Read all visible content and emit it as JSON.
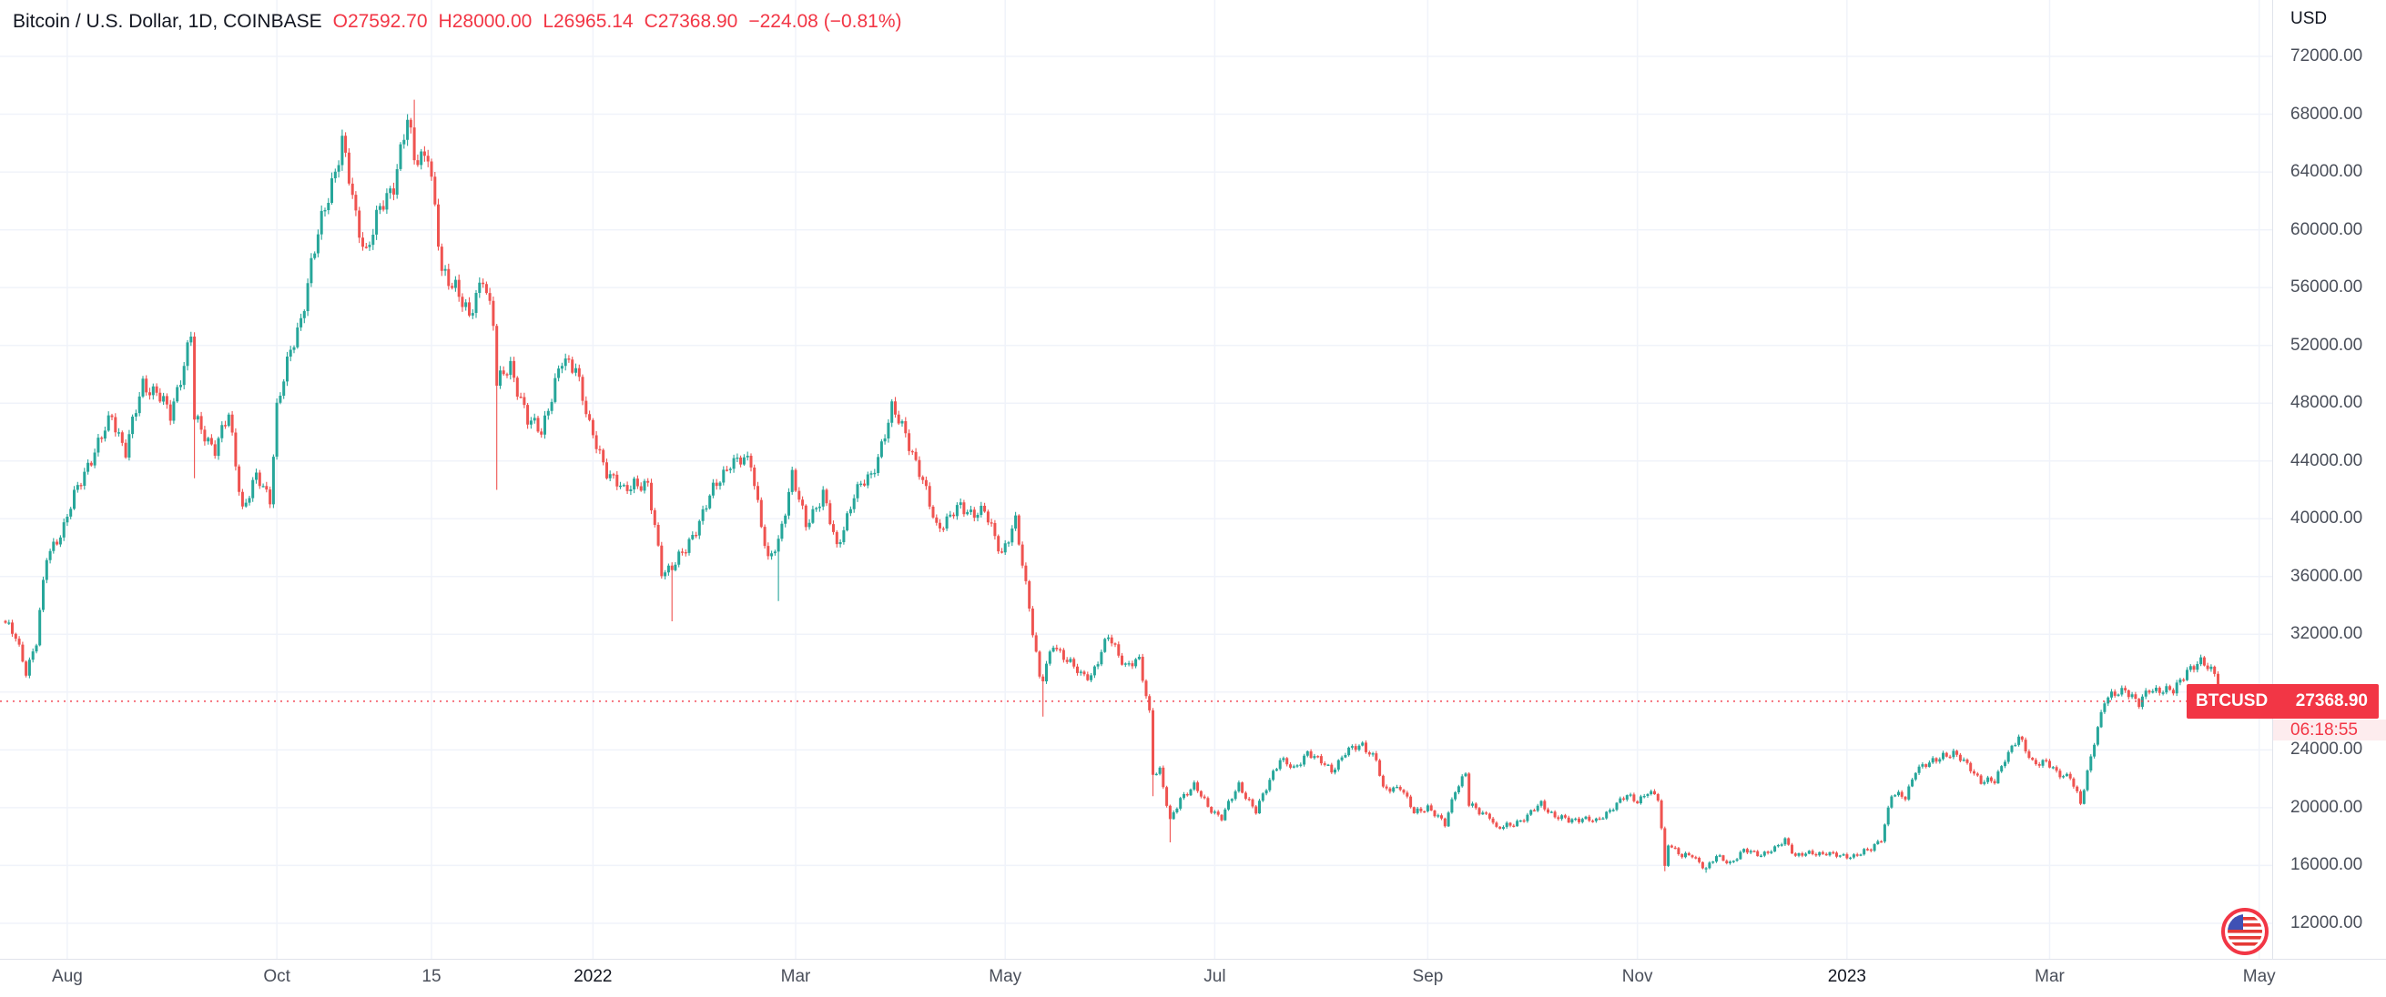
{
  "legend": {
    "symbol_text": "Bitcoin / U.S. Dollar, 1D, COINBASE",
    "ohlc": [
      {
        "label": "O",
        "value": "27592.70"
      },
      {
        "label": "H",
        "value": "28000.00"
      },
      {
        "label": "L",
        "value": "26965.14"
      },
      {
        "label": "C",
        "value": "27368.90"
      }
    ],
    "change_text": "−224.08 (−0.81%)"
  },
  "price_axis": {
    "currency_label": "USD",
    "badge": {
      "symbol": "BTCUSD",
      "price": "27368.90",
      "countdown": "06:18:55"
    }
  },
  "chart_data": {
    "type": "candlestick",
    "title": "Bitcoin / U.S. Dollar",
    "symbol": "BTCUSD",
    "interval": "1D",
    "exchange": "COINBASE",
    "currency": "USD",
    "current_bar": {
      "open": 27592.7,
      "high": 28000.0,
      "low": 26965.14,
      "close": 27368.9,
      "change": -224.08,
      "change_pct": -0.81
    },
    "price_line": 27368.9,
    "countdown": "06:18:55",
    "colors": {
      "up": "#26a69a",
      "down": "#ef5350",
      "accent": "#f23645"
    },
    "grid": true,
    "y_axis": {
      "side": "right",
      "ticks": [
        72000,
        68000,
        64000,
        60000,
        56000,
        52000,
        48000,
        44000,
        40000,
        36000,
        32000,
        28000,
        24000,
        20000,
        16000,
        12000
      ]
    },
    "x_axis": {
      "ticks": [
        {
          "label": "Aug",
          "day": 18
        },
        {
          "label": "Oct",
          "day": 79
        },
        {
          "label": "15",
          "day": 124
        },
        {
          "label": "2022",
          "day": 171,
          "major": true
        },
        {
          "label": "Mar",
          "day": 230
        },
        {
          "label": "May",
          "day": 291
        },
        {
          "label": "Jul",
          "day": 352
        },
        {
          "label": "Sep",
          "day": 414
        },
        {
          "label": "Nov",
          "day": 475
        },
        {
          "label": "2023",
          "day": 536,
          "major": true
        },
        {
          "label": "Mar",
          "day": 595
        },
        {
          "label": "May",
          "day": 656
        }
      ]
    },
    "series": {
      "sampling": "daily candles interpolated between anchor closes read off the chart; day 0 = left edge of plot",
      "anchors": [
        [
          0,
          32800
        ],
        [
          3,
          31700
        ],
        [
          6,
          29500
        ],
        [
          9,
          31500
        ],
        [
          12,
          37300
        ],
        [
          17,
          39500
        ],
        [
          20,
          41500
        ],
        [
          24,
          43800
        ],
        [
          28,
          45600
        ],
        [
          31,
          47100
        ],
        [
          35,
          44700
        ],
        [
          40,
          49300
        ],
        [
          44,
          48800
        ],
        [
          48,
          47100
        ],
        [
          54,
          52700
        ],
        [
          55,
          46900
        ],
        [
          57,
          46100
        ],
        [
          61,
          44900
        ],
        [
          65,
          47100
        ],
        [
          69,
          40700
        ],
        [
          73,
          42800
        ],
        [
          77,
          41500
        ],
        [
          79,
          47700
        ],
        [
          83,
          51500
        ],
        [
          86,
          53900
        ],
        [
          89,
          57500
        ],
        [
          93,
          61600
        ],
        [
          98,
          66000
        ],
        [
          102,
          60900
        ],
        [
          105,
          58500
        ],
        [
          109,
          61300
        ],
        [
          113,
          63300
        ],
        [
          117,
          67500
        ],
        [
          119,
          64900
        ],
        [
          123,
          65500
        ],
        [
          127,
          56900
        ],
        [
          131,
          56300
        ],
        [
          135,
          53700
        ],
        [
          139,
          57000
        ],
        [
          142,
          53600
        ],
        [
          143,
          49200
        ],
        [
          147,
          50700
        ],
        [
          152,
          46700
        ],
        [
          156,
          46200
        ],
        [
          162,
          50800
        ],
        [
          166,
          50700
        ],
        [
          170,
          46200
        ],
        [
          175,
          43400
        ],
        [
          180,
          41800
        ],
        [
          183,
          42600
        ],
        [
          187,
          42200
        ],
        [
          191,
          36400
        ],
        [
          194,
          36700
        ],
        [
          198,
          37800
        ],
        [
          205,
          41500
        ],
        [
          211,
          44000
        ],
        [
          217,
          43900
        ],
        [
          222,
          37000
        ],
        [
          225,
          38300
        ],
        [
          229,
          43200
        ],
        [
          233,
          39400
        ],
        [
          238,
          41900
        ],
        [
          242,
          37800
        ],
        [
          247,
          41800
        ],
        [
          252,
          42900
        ],
        [
          258,
          47500
        ],
        [
          262,
          46000
        ],
        [
          266,
          43200
        ],
        [
          271,
          39500
        ],
        [
          274,
          39900
        ],
        [
          278,
          40800
        ],
        [
          281,
          40500
        ],
        [
          285,
          40400
        ],
        [
          290,
          37700
        ],
        [
          294,
          39700
        ],
        [
          298,
          34000
        ],
        [
          301,
          29000
        ],
        [
          302,
          28900
        ],
        [
          305,
          31300
        ],
        [
          309,
          30300
        ],
        [
          313,
          29100
        ],
        [
          316,
          29200
        ],
        [
          321,
          31800
        ],
        [
          326,
          29900
        ],
        [
          330,
          30100
        ],
        [
          333,
          26600
        ],
        [
          334,
          22500
        ],
        [
          336,
          22600
        ],
        [
          339,
          19000
        ],
        [
          342,
          20700
        ],
        [
          346,
          21500
        ],
        [
          350,
          20100
        ],
        [
          354,
          19300
        ],
        [
          359,
          21600
        ],
        [
          364,
          19700
        ],
        [
          369,
          22500
        ],
        [
          371,
          23400
        ],
        [
          375,
          22600
        ],
        [
          379,
          23900
        ],
        [
          382,
          23300
        ],
        [
          386,
          22600
        ],
        [
          390,
          23800
        ],
        [
          395,
          24400
        ],
        [
          399,
          23300
        ],
        [
          401,
          21200
        ],
        [
          406,
          21500
        ],
        [
          410,
          19600
        ],
        [
          414,
          20100
        ],
        [
          419,
          18800
        ],
        [
          422,
          21300
        ],
        [
          425,
          22400
        ],
        [
          426,
          20200
        ],
        [
          429,
          19700
        ],
        [
          432,
          19500
        ],
        [
          434,
          18500
        ],
        [
          438,
          18800
        ],
        [
          443,
          19400
        ],
        [
          447,
          20300
        ],
        [
          451,
          19400
        ],
        [
          455,
          19100
        ],
        [
          459,
          19300
        ],
        [
          463,
          19000
        ],
        [
          468,
          20100
        ],
        [
          472,
          20800
        ],
        [
          475,
          20500
        ],
        [
          478,
          21100
        ],
        [
          481,
          20600
        ],
        [
          482,
          18500
        ],
        [
          483,
          15900
        ],
        [
          484,
          17600
        ],
        [
          488,
          16600
        ],
        [
          491,
          16700
        ],
        [
          495,
          15800
        ],
        [
          498,
          16600
        ],
        [
          502,
          16200
        ],
        [
          506,
          17000
        ],
        [
          511,
          16800
        ],
        [
          515,
          17100
        ],
        [
          518,
          17800
        ],
        [
          521,
          16700
        ],
        [
          525,
          16800
        ],
        [
          530,
          16900
        ],
        [
          534,
          16600
        ],
        [
          538,
          16700
        ],
        [
          543,
          17100
        ],
        [
          546,
          17900
        ],
        [
          549,
          20900
        ],
        [
          553,
          20700
        ],
        [
          556,
          22700
        ],
        [
          560,
          23000
        ],
        [
          564,
          23700
        ],
        [
          567,
          23700
        ],
        [
          572,
          22800
        ],
        [
          575,
          21800
        ],
        [
          579,
          21800
        ],
        [
          582,
          23500
        ],
        [
          586,
          24800
        ],
        [
          590,
          23200
        ],
        [
          594,
          23100
        ],
        [
          597,
          22400
        ],
        [
          601,
          22200
        ],
        [
          604,
          20200
        ],
        [
          606,
          22400
        ],
        [
          608,
          24700
        ],
        [
          611,
          27400
        ],
        [
          614,
          27800
        ],
        [
          617,
          28300
        ],
        [
          621,
          27100
        ],
        [
          624,
          28200
        ],
        [
          627,
          28200
        ],
        [
          631,
          28000
        ],
        [
          635,
          29600
        ],
        [
          639,
          30000
        ],
        [
          643,
          29400
        ],
        [
          646,
          27300
        ],
        [
          648,
          27600
        ],
        [
          649,
          27368.9
        ]
      ],
      "wicks": [
        {
          "day": 55,
          "low": 42800
        },
        {
          "day": 98,
          "high": 66900
        },
        {
          "day": 119,
          "high": 69000
        },
        {
          "day": 143,
          "low": 42000
        },
        {
          "day": 194,
          "low": 32900
        },
        {
          "day": 225,
          "low": 34300
        },
        {
          "day": 302,
          "low": 26300
        },
        {
          "day": 334,
          "low": 20800
        },
        {
          "day": 339,
          "low": 17600
        },
        {
          "day": 483,
          "low": 15600
        },
        {
          "day": 495,
          "low": 15500
        },
        {
          "day": 639,
          "high": 30600
        }
      ]
    }
  }
}
